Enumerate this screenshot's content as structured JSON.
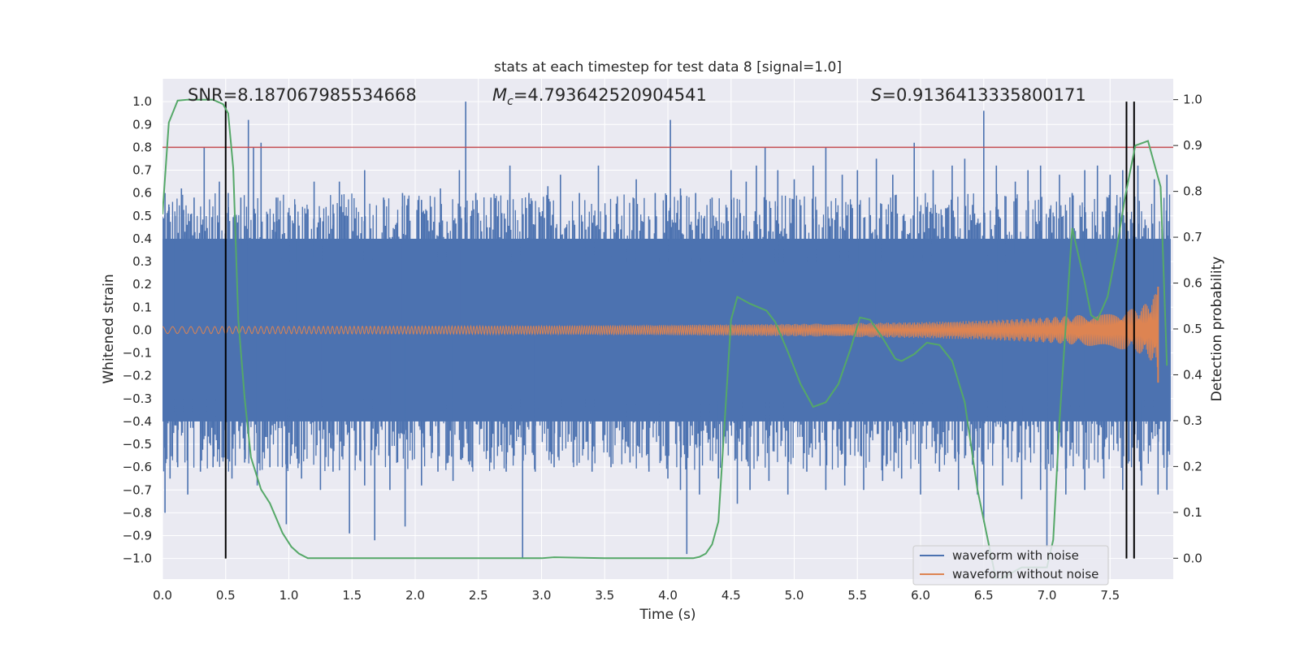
{
  "chart_data": {
    "type": "line",
    "title": "stats at each timestep for test data 8 [signal=1.0]",
    "xlabel": "Time (s)",
    "ylabel": "Whitened strain",
    "y2label": "Detection probability",
    "xlim": [
      0.0,
      8.0
    ],
    "ylim": [
      -1.09,
      1.1
    ],
    "y2lim": [
      -0.0455,
      1.0455
    ],
    "xticks": [
      0.0,
      0.5,
      1.0,
      1.5,
      2.0,
      2.5,
      3.0,
      3.5,
      4.0,
      4.5,
      5.0,
      5.5,
      6.0,
      6.5,
      7.0,
      7.5
    ],
    "xtick_labels": [
      "0.0",
      "0.5",
      "1.0",
      "1.5",
      "2.0",
      "2.5",
      "3.0",
      "3.5",
      "4.0",
      "4.5",
      "5.0",
      "5.5",
      "6.0",
      "6.5",
      "7.0",
      "7.5"
    ],
    "yticks": [
      -1.0,
      -0.9,
      -0.8,
      -0.7,
      -0.6,
      -0.5,
      -0.4,
      -0.3,
      -0.2,
      -0.1,
      0.0,
      0.1,
      0.2,
      0.3,
      0.4,
      0.5,
      0.6,
      0.7,
      0.8,
      0.9,
      1.0
    ],
    "ytick_labels": [
      "−1.0",
      "−0.9",
      "−0.8",
      "−0.7",
      "−0.6",
      "−0.5",
      "−0.4",
      "−0.3",
      "−0.2",
      "−0.1",
      "0.0",
      "0.1",
      "0.2",
      "0.3",
      "0.4",
      "0.5",
      "0.6",
      "0.7",
      "0.8",
      "0.9",
      "1.0"
    ],
    "y2ticks": [
      0.0,
      0.1,
      0.2,
      0.3,
      0.4,
      0.5,
      0.6,
      0.7,
      0.8,
      0.9,
      1.0
    ],
    "y2tick_labels": [
      "0.0",
      "0.1",
      "0.2",
      "0.3",
      "0.4",
      "0.5",
      "0.6",
      "0.7",
      "0.8",
      "0.9",
      "1.0"
    ],
    "grid": true,
    "legend_position": "bottom-right",
    "annotations": {
      "snr": "SNR=8.187067985534668",
      "mc_symbol": "M",
      "mc_subscript": "c",
      "mc_value": "=4.793642520904541",
      "s_symbol": "S",
      "s_value": "=0.9136413335800171"
    },
    "threshold": {
      "y": 0.8,
      "color": "#c44e52"
    },
    "vertical_lines": [
      0.5,
      7.63,
      7.69
    ],
    "series": [
      {
        "name": "waveform with noise",
        "color": "#4c72b0",
        "core_amplitude": 0.4,
        "spikes_up": [
          [
            0.02,
            0.6
          ],
          [
            0.05,
            0.55
          ],
          [
            0.1,
            0.5
          ],
          [
            0.15,
            0.62
          ],
          [
            0.25,
            0.58
          ],
          [
            0.33,
            0.8
          ],
          [
            0.45,
            0.65
          ],
          [
            0.52,
            0.6
          ],
          [
            0.62,
            0.58
          ],
          [
            0.68,
            0.92
          ],
          [
            0.72,
            0.8
          ],
          [
            0.78,
            0.82
          ],
          [
            0.9,
            0.58
          ],
          [
            1.05,
            0.55
          ],
          [
            1.2,
            0.65
          ],
          [
            1.35,
            0.55
          ],
          [
            1.4,
            0.65
          ],
          [
            1.6,
            0.7
          ],
          [
            1.75,
            0.58
          ],
          [
            1.9,
            0.6
          ],
          [
            2.05,
            0.57
          ],
          [
            2.2,
            0.62
          ],
          [
            2.35,
            0.7
          ],
          [
            2.4,
            1.0
          ],
          [
            2.48,
            0.6
          ],
          [
            2.6,
            0.58
          ],
          [
            2.75,
            0.72
          ],
          [
            2.9,
            0.6
          ],
          [
            3.05,
            0.63
          ],
          [
            3.15,
            0.68
          ],
          [
            3.3,
            0.6
          ],
          [
            3.45,
            0.72
          ],
          [
            3.6,
            0.58
          ],
          [
            3.75,
            0.66
          ],
          [
            3.9,
            0.6
          ],
          [
            4.02,
            0.92
          ],
          [
            4.1,
            0.62
          ],
          [
            4.22,
            0.6
          ],
          [
            4.35,
            0.58
          ],
          [
            4.5,
            0.7
          ],
          [
            4.62,
            0.65
          ],
          [
            4.7,
            0.72
          ],
          [
            4.77,
            0.8
          ],
          [
            4.87,
            0.7
          ],
          [
            5.0,
            0.66
          ],
          [
            5.15,
            0.72
          ],
          [
            5.25,
            0.8
          ],
          [
            5.38,
            0.68
          ],
          [
            5.5,
            0.7
          ],
          [
            5.65,
            0.75
          ],
          [
            5.78,
            0.68
          ],
          [
            5.95,
            0.82
          ],
          [
            6.1,
            0.7
          ],
          [
            6.25,
            0.72
          ],
          [
            6.35,
            0.75
          ],
          [
            6.5,
            0.96
          ],
          [
            6.6,
            0.72
          ],
          [
            6.75,
            0.65
          ],
          [
            6.85,
            0.7
          ],
          [
            6.95,
            0.72
          ],
          [
            7.1,
            0.68
          ],
          [
            7.2,
            0.6
          ],
          [
            7.3,
            0.7
          ],
          [
            7.4,
            0.72
          ],
          [
            7.5,
            0.68
          ],
          [
            7.6,
            0.7
          ],
          [
            7.72,
            0.72
          ],
          [
            7.85,
            0.66
          ],
          [
            7.95,
            0.68
          ]
        ],
        "spikes_down": [
          [
            0.02,
            -0.8
          ],
          [
            0.06,
            -0.65
          ],
          [
            0.12,
            -0.6
          ],
          [
            0.2,
            -0.72
          ],
          [
            0.3,
            -0.62
          ],
          [
            0.4,
            -0.6
          ],
          [
            0.55,
            -0.65
          ],
          [
            0.65,
            -0.58
          ],
          [
            0.75,
            -0.68
          ],
          [
            0.85,
            -0.6
          ],
          [
            0.98,
            -0.85
          ],
          [
            1.1,
            -0.65
          ],
          [
            1.25,
            -0.7
          ],
          [
            1.35,
            -0.62
          ],
          [
            1.48,
            -0.89
          ],
          [
            1.6,
            -0.68
          ],
          [
            1.68,
            -0.92
          ],
          [
            1.8,
            -0.7
          ],
          [
            1.92,
            -0.86
          ],
          [
            2.05,
            -0.68
          ],
          [
            2.18,
            -0.62
          ],
          [
            2.3,
            -0.66
          ],
          [
            2.45,
            -0.6
          ],
          [
            2.6,
            -0.58
          ],
          [
            2.72,
            -0.62
          ],
          [
            2.85,
            -1.0
          ],
          [
            2.95,
            -0.62
          ],
          [
            3.1,
            -0.6
          ],
          [
            3.25,
            -0.58
          ],
          [
            3.4,
            -0.62
          ],
          [
            3.55,
            -0.6
          ],
          [
            3.7,
            -0.58
          ],
          [
            3.85,
            -0.62
          ],
          [
            4.0,
            -0.65
          ],
          [
            4.1,
            -0.7
          ],
          [
            4.15,
            -0.98
          ],
          [
            4.25,
            -0.72
          ],
          [
            4.4,
            -0.65
          ],
          [
            4.55,
            -0.76
          ],
          [
            4.65,
            -0.7
          ],
          [
            4.8,
            -0.66
          ],
          [
            4.95,
            -0.72
          ],
          [
            5.1,
            -0.62
          ],
          [
            5.25,
            -0.7
          ],
          [
            5.4,
            -0.68
          ],
          [
            5.55,
            -0.7
          ],
          [
            5.7,
            -0.66
          ],
          [
            5.85,
            -0.65
          ],
          [
            6.0,
            -0.72
          ],
          [
            6.15,
            -0.62
          ],
          [
            6.3,
            -0.7
          ],
          [
            6.45,
            -0.72
          ],
          [
            6.5,
            -0.84
          ],
          [
            6.65,
            -0.68
          ],
          [
            6.8,
            -0.74
          ],
          [
            6.95,
            -0.7
          ],
          [
            7.0,
            -0.95
          ],
          [
            7.15,
            -0.72
          ],
          [
            7.3,
            -0.7
          ],
          [
            7.45,
            -0.65
          ],
          [
            7.6,
            -0.7
          ],
          [
            7.75,
            -0.68
          ],
          [
            7.88,
            -0.72
          ],
          [
            7.95,
            -0.7
          ]
        ]
      },
      {
        "name": "waveform without noise",
        "color": "#dd8452",
        "envelope": [
          [
            0.0,
            0.015
          ],
          [
            1.0,
            0.016
          ],
          [
            2.0,
            0.017
          ],
          [
            3.0,
            0.019
          ],
          [
            4.0,
            0.022
          ],
          [
            5.0,
            0.027
          ],
          [
            6.0,
            0.035
          ],
          [
            6.5,
            0.042
          ],
          [
            7.0,
            0.055
          ],
          [
            7.4,
            0.072
          ],
          [
            7.6,
            0.085
          ],
          [
            7.7,
            0.095
          ],
          [
            7.8,
            0.12
          ],
          [
            7.86,
            0.16
          ],
          [
            7.88,
            0.19
          ]
        ],
        "end_min": -0.23
      },
      {
        "name": "detection probability",
        "axis": "right",
        "color": "#55a868",
        "x": [
          0.0,
          0.05,
          0.12,
          0.2,
          0.3,
          0.4,
          0.48,
          0.52,
          0.56,
          0.6,
          0.65,
          0.7,
          0.78,
          0.85,
          0.95,
          1.02,
          1.08,
          1.15,
          1.3,
          2.0,
          2.5,
          3.0,
          3.1,
          3.5,
          4.0,
          4.2,
          4.25,
          4.3,
          4.35,
          4.4,
          4.45,
          4.5,
          4.55,
          4.65,
          4.78,
          4.85,
          4.95,
          5.05,
          5.15,
          5.25,
          5.35,
          5.45,
          5.52,
          5.6,
          5.7,
          5.8,
          5.85,
          5.95,
          6.05,
          6.15,
          6.25,
          6.35,
          6.45,
          6.6,
          6.8,
          7.0,
          7.05,
          7.1,
          7.2,
          7.3,
          7.35,
          7.4,
          7.48,
          7.55,
          7.62,
          7.7,
          7.8,
          7.9,
          7.95
        ],
        "y": [
          0.75,
          0.95,
          0.998,
          1.0,
          1.0,
          1.0,
          0.99,
          0.97,
          0.85,
          0.52,
          0.35,
          0.22,
          0.15,
          0.12,
          0.055,
          0.025,
          0.01,
          0.0,
          0.0,
          0.0,
          0.0,
          0.0,
          0.002,
          0.0,
          0.0,
          0.0,
          0.003,
          0.01,
          0.03,
          0.08,
          0.3,
          0.52,
          0.57,
          0.555,
          0.54,
          0.515,
          0.45,
          0.38,
          0.33,
          0.34,
          0.38,
          0.46,
          0.525,
          0.52,
          0.48,
          0.435,
          0.43,
          0.445,
          0.47,
          0.465,
          0.43,
          0.34,
          0.15,
          -0.05,
          -0.02,
          -0.02,
          0.04,
          0.3,
          0.72,
          0.6,
          0.53,
          0.52,
          0.57,
          0.67,
          0.79,
          0.9,
          0.91,
          0.81,
          0.42
        ]
      }
    ]
  }
}
